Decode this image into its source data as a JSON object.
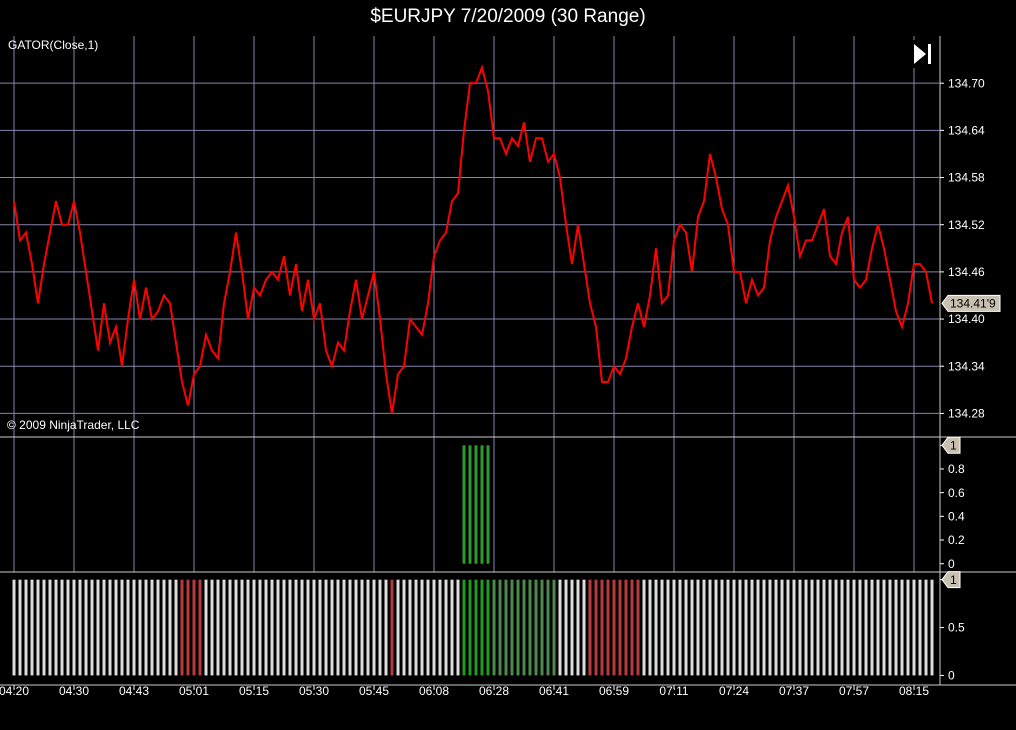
{
  "chart_data": [
    {
      "type": "line",
      "title": "$EURJPY  7/20/2009 (30 Range)",
      "indicator_label": "GATOR(Close,1)",
      "copyright": "© 2009 NinjaTrader, LLC",
      "categories": [
        "04:20",
        null,
        null,
        null,
        null,
        null,
        null,
        null,
        null,
        null,
        "04:30",
        null,
        null,
        null,
        null,
        null,
        null,
        null,
        null,
        null,
        "04:43",
        null,
        null,
        null,
        null,
        null,
        null,
        null,
        null,
        null,
        "05:01",
        null,
        null,
        null,
        null,
        null,
        null,
        null,
        null,
        null,
        "05:15",
        null,
        null,
        null,
        null,
        null,
        null,
        null,
        null,
        null,
        "05:30",
        null,
        null,
        null,
        null,
        null,
        null,
        null,
        null,
        null,
        "05:45",
        null,
        null,
        null,
        null,
        null,
        null,
        null,
        null,
        null,
        "06:08",
        null,
        null,
        null,
        null,
        null,
        null,
        null,
        null,
        null,
        "06:28",
        null,
        null,
        null,
        null,
        null,
        null,
        null,
        null,
        null,
        "06:41",
        null,
        null,
        null,
        null,
        null,
        null,
        null,
        null,
        null,
        "06:59",
        null,
        null,
        null,
        null,
        null,
        null,
        null,
        null,
        null,
        "07:11",
        null,
        null,
        null,
        null,
        null,
        null,
        null,
        null,
        null,
        "07:24",
        null,
        null,
        null,
        null,
        null,
        null,
        null,
        null,
        null,
        "07:37",
        null,
        null,
        null,
        null,
        null,
        null,
        null,
        null,
        null,
        "07:57",
        null,
        null,
        null,
        null,
        null,
        null,
        null,
        null,
        null,
        "08:15",
        null,
        null,
        null
      ],
      "values": [
        134.55,
        134.5,
        134.51,
        134.47,
        134.42,
        134.47,
        134.51,
        134.55,
        134.52,
        134.52,
        134.55,
        134.51,
        134.46,
        134.41,
        134.36,
        134.42,
        134.37,
        134.39,
        134.34,
        134.4,
        134.45,
        134.4,
        134.44,
        134.4,
        134.41,
        134.43,
        134.42,
        134.37,
        134.32,
        134.29,
        134.33,
        134.34,
        134.38,
        134.36,
        134.35,
        134.42,
        134.46,
        134.51,
        134.46,
        134.4,
        134.44,
        134.43,
        134.45,
        134.46,
        134.45,
        134.48,
        134.43,
        134.47,
        134.41,
        134.45,
        134.4,
        134.42,
        134.36,
        134.34,
        134.37,
        134.36,
        134.41,
        134.45,
        134.4,
        134.43,
        134.46,
        134.4,
        134.33,
        134.28,
        134.33,
        134.34,
        134.4,
        134.39,
        134.38,
        134.42,
        134.48,
        134.5,
        134.51,
        134.55,
        134.56,
        134.64,
        134.7,
        134.7,
        134.72,
        134.69,
        134.63,
        134.63,
        134.61,
        134.63,
        134.62,
        134.65,
        134.6,
        134.63,
        134.63,
        134.6,
        134.61,
        134.58,
        134.52,
        134.47,
        134.52,
        134.47,
        134.42,
        134.39,
        134.32,
        134.32,
        134.34,
        134.33,
        134.35,
        134.39,
        134.42,
        134.39,
        134.43,
        134.49,
        134.42,
        134.43,
        134.5,
        134.52,
        134.51,
        134.46,
        134.53,
        134.55,
        134.61,
        134.58,
        134.54,
        134.52,
        134.46,
        134.46,
        134.42,
        134.45,
        134.43,
        134.44,
        134.5,
        134.53,
        134.55,
        134.57,
        134.53,
        134.48,
        134.5,
        134.5,
        134.52,
        134.54,
        134.48,
        134.47,
        134.51,
        134.53,
        134.45,
        134.44,
        134.45,
        134.49,
        134.52,
        134.49,
        134.45,
        134.41,
        134.39,
        134.42,
        134.47,
        134.47,
        134.46,
        134.42
      ],
      "color": "#ff0000",
      "last_price_label": "134.41'9",
      "ylim": [
        134.25,
        134.76
      ],
      "yticks": [
        134.28,
        134.34,
        {
          "value": 134.4,
          "label": "134.40"
        },
        134.46,
        134.52,
        134.58,
        134.64,
        {
          "value": 134.7,
          "label": "134.70"
        }
      ],
      "grid": true
    },
    {
      "type": "bar",
      "color": "#2e9a2e",
      "ylim": [
        -0.07,
        1.07
      ],
      "yticks": [
        0,
        0.2,
        0.4,
        0.6,
        0.8,
        1
      ],
      "values": [
        0,
        0,
        0,
        0,
        0,
        0,
        0,
        0,
        0,
        0,
        0,
        0,
        0,
        0,
        0,
        0,
        0,
        0,
        0,
        0,
        0,
        0,
        0,
        0,
        0,
        0,
        0,
        0,
        0,
        0,
        0,
        0,
        0,
        0,
        0,
        0,
        0,
        0,
        0,
        0,
        0,
        0,
        0,
        0,
        0,
        0,
        0,
        0,
        0,
        0,
        0,
        0,
        0,
        0,
        0,
        0,
        0,
        0,
        0,
        0,
        0,
        0,
        0,
        0,
        0,
        0,
        0,
        0,
        0,
        0,
        0,
        0,
        0,
        0,
        0,
        1,
        1,
        1,
        1,
        1,
        0,
        0,
        0,
        0,
        0,
        0,
        0,
        0,
        0,
        0,
        0,
        0,
        0,
        0,
        0,
        0,
        0,
        0,
        0,
        0,
        0,
        0,
        0,
        0,
        0,
        0,
        0,
        0,
        0,
        0,
        0,
        0,
        0,
        0,
        0,
        0,
        0,
        0,
        0,
        0,
        0,
        0,
        0,
        0,
        0,
        0,
        0,
        0,
        0,
        0,
        0,
        0,
        0,
        0,
        0,
        0,
        0,
        0,
        0,
        0,
        0,
        0,
        0,
        0,
        0,
        0,
        0,
        0,
        0,
        0,
        0,
        0,
        0,
        0
      ]
    },
    {
      "type": "bar",
      "ylim": [
        -0.1,
        1.08
      ],
      "yticks": [
        0,
        0.5,
        1
      ],
      "values": [
        1,
        1,
        1,
        1,
        1,
        1,
        1,
        1,
        1,
        1,
        1,
        1,
        1,
        1,
        1,
        1,
        1,
        1,
        1,
        1,
        1,
        1,
        1,
        1,
        1,
        1,
        1,
        1,
        1,
        1,
        1,
        1,
        1,
        1,
        1,
        1,
        1,
        1,
        1,
        1,
        1,
        1,
        1,
        1,
        1,
        1,
        1,
        1,
        1,
        1,
        1,
        1,
        1,
        1,
        1,
        1,
        1,
        1,
        1,
        1,
        1,
        1,
        1,
        1,
        1,
        1,
        1,
        1,
        1,
        1,
        1,
        1,
        1,
        1,
        1,
        1,
        1,
        1,
        1,
        1,
        1,
        1,
        1,
        1,
        1,
        1,
        1,
        1,
        1,
        1,
        1,
        1,
        1,
        1,
        1,
        1,
        1,
        1,
        1,
        1,
        1,
        1,
        1,
        1,
        1,
        1,
        1,
        1,
        1,
        1,
        1,
        1,
        1,
        1,
        1,
        1,
        1,
        1,
        1,
        1,
        1,
        1,
        1,
        1,
        1,
        1,
        1,
        1,
        1,
        1,
        1,
        1,
        1,
        1,
        1,
        1,
        1,
        1,
        1,
        1,
        1,
        1,
        1,
        1,
        1,
        1,
        1,
        1,
        1,
        1,
        1,
        1,
        1,
        1
      ],
      "colors": [
        "#ddd",
        "#ddd",
        "#ddd",
        "#ddd",
        "#ddd",
        "#ddd",
        "#ddd",
        "#ddd",
        "#ddd",
        "#ddd",
        "#ddd",
        "#ddd",
        "#ddd",
        "#ddd",
        "#ddd",
        "#ddd",
        "#ddd",
        "#ddd",
        "#ddd",
        "#ddd",
        "#ddd",
        "#ddd",
        "#ddd",
        "#ddd",
        "#ddd",
        "#ddd",
        "#ddd",
        "#ddd",
        "#b83a3a",
        "#b83a3a",
        "#b83a3a",
        "#b83a3a",
        "#ddd",
        "#ddd",
        "#ddd",
        "#ddd",
        "#ddd",
        "#ddd",
        "#ddd",
        "#ddd",
        "#ddd",
        "#ddd",
        "#ddd",
        "#ddd",
        "#ddd",
        "#ddd",
        "#ddd",
        "#ddd",
        "#ddd",
        "#ddd",
        "#ddd",
        "#ddd",
        "#ddd",
        "#ddd",
        "#ddd",
        "#ddd",
        "#ddd",
        "#ddd",
        "#ddd",
        "#ddd",
        "#ddd",
        "#ddd",
        "#ddd",
        "#b83a3a",
        "#ddd",
        "#ddd",
        "#ddd",
        "#ddd",
        "#ddd",
        "#ddd",
        "#ddd",
        "#ddd",
        "#ddd",
        "#ddd",
        "#ddd",
        "#229a22",
        "#229a22",
        "#229a22",
        "#229a22",
        "#229a22",
        "#4c8a4c",
        "#4c8a4c",
        "#4c8a4c",
        "#4c8a4c",
        "#4c8a4c",
        "#4c8a4c",
        "#4c8a4c",
        "#4c8a4c",
        "#4c8a4c",
        "#4c8a4c",
        "#4c8a4c",
        "#ddd",
        "#ddd",
        "#ddd",
        "#ddd",
        "#ddd",
        "#b83a3a",
        "#b83a3a",
        "#b83a3a",
        "#b83a3a",
        "#b83a3a",
        "#b83a3a",
        "#b83a3a",
        "#b83a3a",
        "#b83a3a",
        "#ddd",
        "#ddd",
        "#ddd",
        "#ddd",
        "#ddd",
        "#ddd",
        "#ddd",
        "#ddd",
        "#ddd",
        "#ddd",
        "#ddd",
        "#ddd",
        "#ddd",
        "#ddd",
        "#ddd",
        "#ddd",
        "#ddd",
        "#ddd",
        "#ddd",
        "#ddd",
        "#ddd",
        "#ddd",
        "#ddd",
        "#ddd",
        "#ddd",
        "#ddd",
        "#ddd",
        "#ddd",
        "#ddd",
        "#ddd",
        "#ddd",
        "#ddd",
        "#ddd",
        "#ddd",
        "#ddd",
        "#ddd",
        "#ddd",
        "#ddd",
        "#ddd",
        "#ddd",
        "#ddd",
        "#ddd",
        "#ddd",
        "#ddd",
        "#ddd",
        "#ddd",
        "#ddd",
        "#ddd",
        "#ddd"
      ]
    }
  ]
}
